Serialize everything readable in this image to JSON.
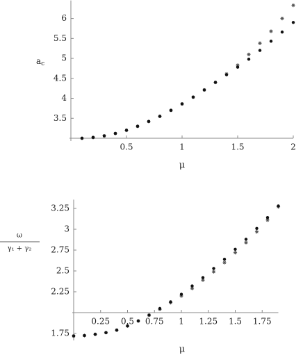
{
  "chart_data": [
    {
      "type": "scatter",
      "ylabel": {
        "main": "a",
        "sub": "c"
      },
      "xlabel": "μ",
      "origin": [
        0,
        3.0
      ],
      "xlim": [
        0,
        2.0
      ],
      "ylim": [
        3.0,
        6.4
      ],
      "xticks": [
        0.5,
        1,
        1.5,
        2
      ],
      "yticks": [
        3.5,
        4,
        4.5,
        5,
        5.5,
        6
      ],
      "x": [
        0.1,
        0.2,
        0.3,
        0.4,
        0.5,
        0.6,
        0.7,
        0.8,
        0.9,
        1.0,
        1.1,
        1.2,
        1.3,
        1.4,
        1.5,
        1.6,
        1.7,
        1.8,
        1.9,
        2.0
      ],
      "series": [
        {
          "marker": "star",
          "color": "#555555",
          "values": [
            3.0,
            3.02,
            3.06,
            3.12,
            3.2,
            3.3,
            3.42,
            3.55,
            3.7,
            3.86,
            4.03,
            4.21,
            4.4,
            4.61,
            4.83,
            5.1,
            5.38,
            5.68,
            6.0,
            6.33
          ]
        },
        {
          "marker": "dot",
          "color": "#111111",
          "values": [
            3.0,
            3.02,
            3.06,
            3.12,
            3.2,
            3.3,
            3.42,
            3.55,
            3.7,
            3.86,
            4.03,
            4.21,
            4.4,
            4.59,
            4.78,
            4.98,
            5.2,
            5.43,
            5.66,
            5.9
          ]
        }
      ]
    },
    {
      "type": "scatter",
      "ylabel": {
        "numerator": "ω",
        "denominator": "γ₁ + γ₂"
      },
      "xlabel": "μ",
      "origin": [
        0,
        2.0
      ],
      "xlim": [
        0,
        1.9
      ],
      "ylim": [
        1.7,
        3.33
      ],
      "xticks": [
        0.25,
        0.5,
        0.75,
        1,
        1.25,
        1.5,
        1.75
      ],
      "yticks": [
        1.75,
        2.25,
        2.5,
        2.75,
        3,
        3.25
      ],
      "x": [
        0,
        0.1,
        0.2,
        0.3,
        0.4,
        0.5,
        0.6,
        0.7,
        0.8,
        0.9,
        1.0,
        1.1,
        1.2,
        1.3,
        1.4,
        1.5,
        1.6,
        1.7,
        1.8,
        1.9
      ],
      "series": [
        {
          "marker": "star",
          "color": "#555555",
          "values": [
            1.72,
            1.725,
            1.74,
            1.76,
            1.79,
            1.84,
            1.9,
            1.97,
            2.04,
            2.12,
            2.2,
            2.29,
            2.39,
            2.49,
            2.6,
            2.72,
            2.84,
            2.97,
            3.11,
            3.27
          ]
        },
        {
          "marker": "dot",
          "color": "#111111",
          "values": [
            1.72,
            1.725,
            1.74,
            1.76,
            1.79,
            1.84,
            1.9,
            1.97,
            2.05,
            2.13,
            2.22,
            2.32,
            2.42,
            2.53,
            2.64,
            2.76,
            2.88,
            3.01,
            3.14,
            3.28
          ]
        }
      ]
    }
  ]
}
